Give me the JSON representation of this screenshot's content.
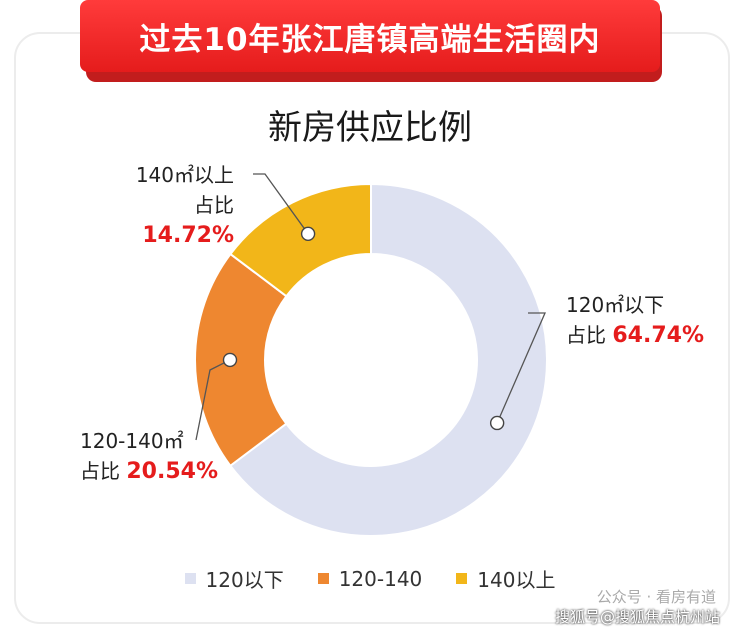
{
  "banner": {
    "title": "过去10年张江唐镇高端生活圈内"
  },
  "chart_data": {
    "type": "pie",
    "title": "新房供应比例",
    "donut": true,
    "slices": [
      {
        "legend": "120以下",
        "label_top": "120㎡以下",
        "label_prefix": "占比",
        "value": 64.74,
        "value_text": "64.74%",
        "color": "#dde1f1"
      },
      {
        "legend": "120-140",
        "label_top": "120-140㎡",
        "label_prefix": "占比",
        "value": 20.54,
        "value_text": "20.54%",
        "color": "#ee8730"
      },
      {
        "legend": "140以上",
        "label_top": "140㎡以上",
        "label_prefix": "占比",
        "value": 14.72,
        "value_text": "14.72%",
        "color": "#f2b619"
      }
    ],
    "legend_position": "bottom"
  },
  "watermark": {
    "line1": "公众号 · 看房有道",
    "line2": "搜狐号@搜狐焦点杭州站"
  }
}
